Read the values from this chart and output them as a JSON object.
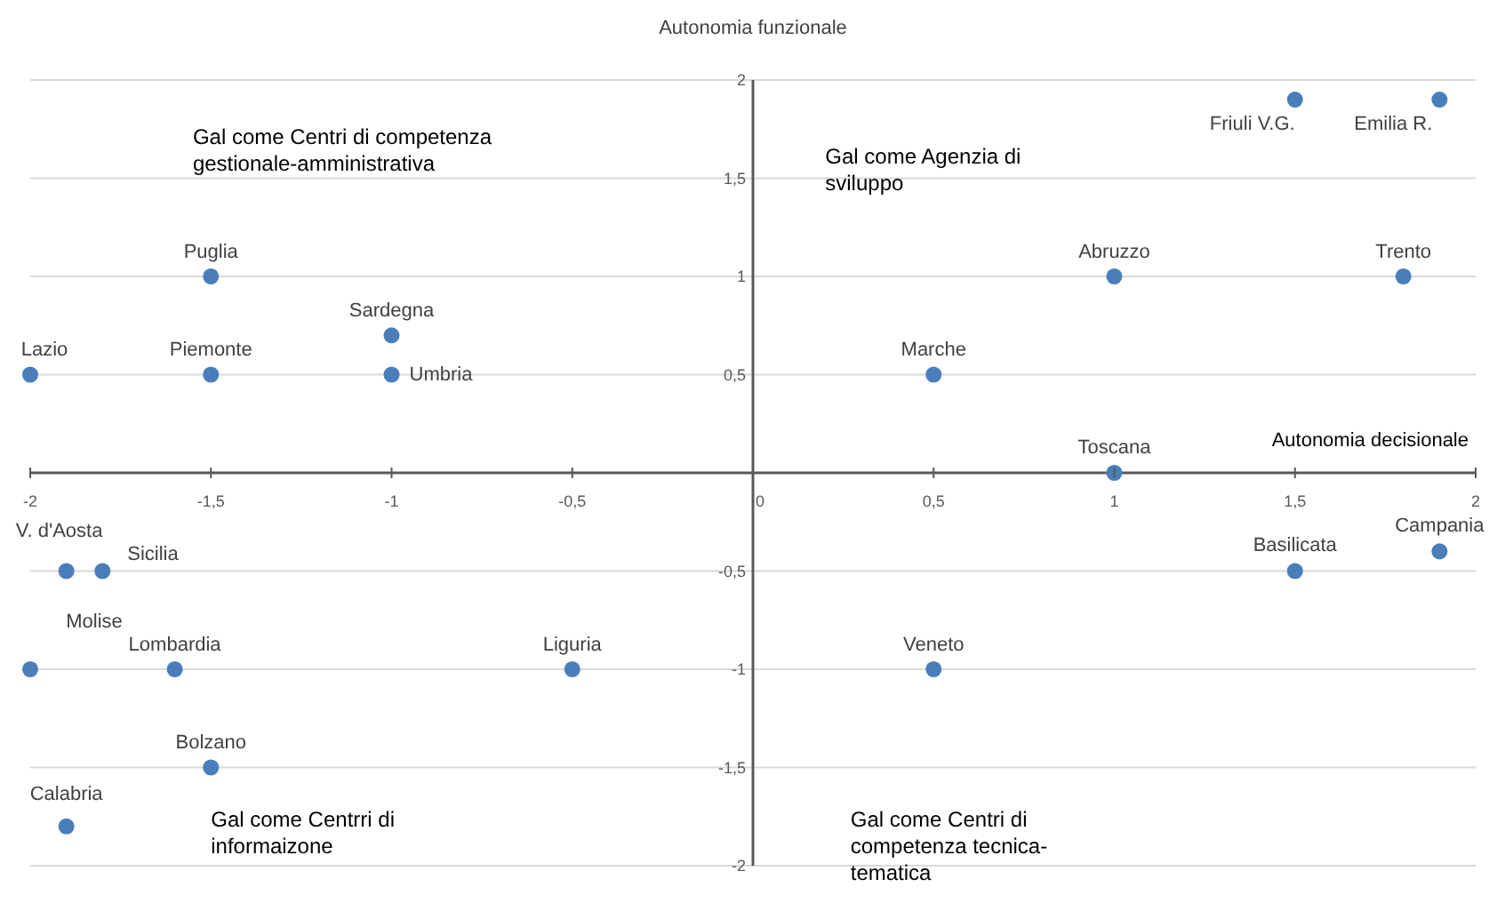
{
  "chart_data": {
    "type": "scatter",
    "xlabel": "Autonomia decisionale",
    "ylabel": "Autonomia funzionale",
    "x": [
      -2,
      -1.5,
      -1.5,
      -1,
      -1,
      0.5,
      1,
      1.8,
      1.5,
      1.9,
      1,
      1.5,
      1.9,
      0.5,
      -0.5,
      -1.6,
      -2,
      -1.9,
      -1.8,
      -1.5,
      -1.9
    ],
    "values": [
      0.5,
      0.5,
      1,
      0.7,
      0.5,
      0.5,
      1,
      1,
      1.9,
      1.9,
      0,
      -0.5,
      -0.4,
      -1,
      -1,
      -1,
      -1,
      -0.5,
      -0.5,
      -1.5,
      -1.8
    ],
    "color": "#4a7ebb",
    "marker": "circle",
    "grid": "y",
    "xlim": [
      -2,
      2
    ],
    "ylim": [
      -2,
      2
    ],
    "xticks": [
      -2,
      {
        "value": -1.5,
        "label": "-1,5"
      },
      -1,
      {
        "value": -0.5,
        "label": "-0,5"
      },
      0,
      {
        "value": 0.5,
        "label": "0,5"
      },
      1,
      {
        "value": 1.5,
        "label": "1,5"
      },
      2
    ],
    "yticks": [
      -2,
      {
        "value": -1.5,
        "label": "-1,5"
      },
      -1,
      {
        "value": -0.5,
        "label": "-0,5"
      },
      {
        "value": 0,
        "label": null
      },
      {
        "value": 0.5,
        "label": "0,5"
      },
      1,
      {
        "value": 1.5,
        "label": "1,5"
      },
      2
    ],
    "annotations": [
      "Gal come Centri di competenza gestionale-amministrativa",
      "Gal come Agenzia di sviluppo",
      "Gal come Centrri di informaizone",
      "Gal come Centri di competenza tecnica-tematica",
      {
        "text": "Lazio",
        "x": -2,
        "y": 0.5
      },
      {
        "text": "Piemonte",
        "x": -1.5,
        "y": 0.5
      },
      {
        "text": "Puglia",
        "x": -1.5,
        "y": 1
      },
      {
        "text": "Sardegna",
        "x": -1,
        "y": 0.7
      },
      {
        "text": "Umbria",
        "x": -1,
        "y": 0.5
      },
      {
        "text": "Marche",
        "x": 0.5,
        "y": 0.5
      },
      {
        "text": "Abruzzo",
        "x": 1,
        "y": 1
      },
      {
        "text": "Trento",
        "x": 1.8,
        "y": 1
      },
      {
        "text": "Friuli V.G.",
        "x": 1.5,
        "y": 1.9
      },
      {
        "text": "Emilia R.",
        "x": 1.9,
        "y": 1.9
      },
      {
        "text": "Toscana",
        "x": 1,
        "y": 0
      },
      {
        "text": "Basilicata",
        "x": 1.5,
        "y": -0.5
      },
      {
        "text": "Campania",
        "x": 1.9,
        "y": -0.4
      },
      {
        "text": "Veneto",
        "x": 0.5,
        "y": -1
      },
      {
        "text": "Liguria",
        "x": -0.5,
        "y": -1
      },
      {
        "text": "Lombardia",
        "x": -1.6,
        "y": -1
      },
      {
        "text": "Molise",
        "x": -2,
        "y": -1
      },
      {
        "text": "V. d'Aosta",
        "x": -1.9,
        "y": -0.5
      },
      {
        "text": "Sicilia",
        "x": -1.8,
        "y": -0.5
      },
      {
        "text": "Bolzano",
        "x": -1.5,
        "y": -1.5
      },
      {
        "text": "Calabria",
        "x": -1.9,
        "y": -1.8
      }
    ]
  }
}
